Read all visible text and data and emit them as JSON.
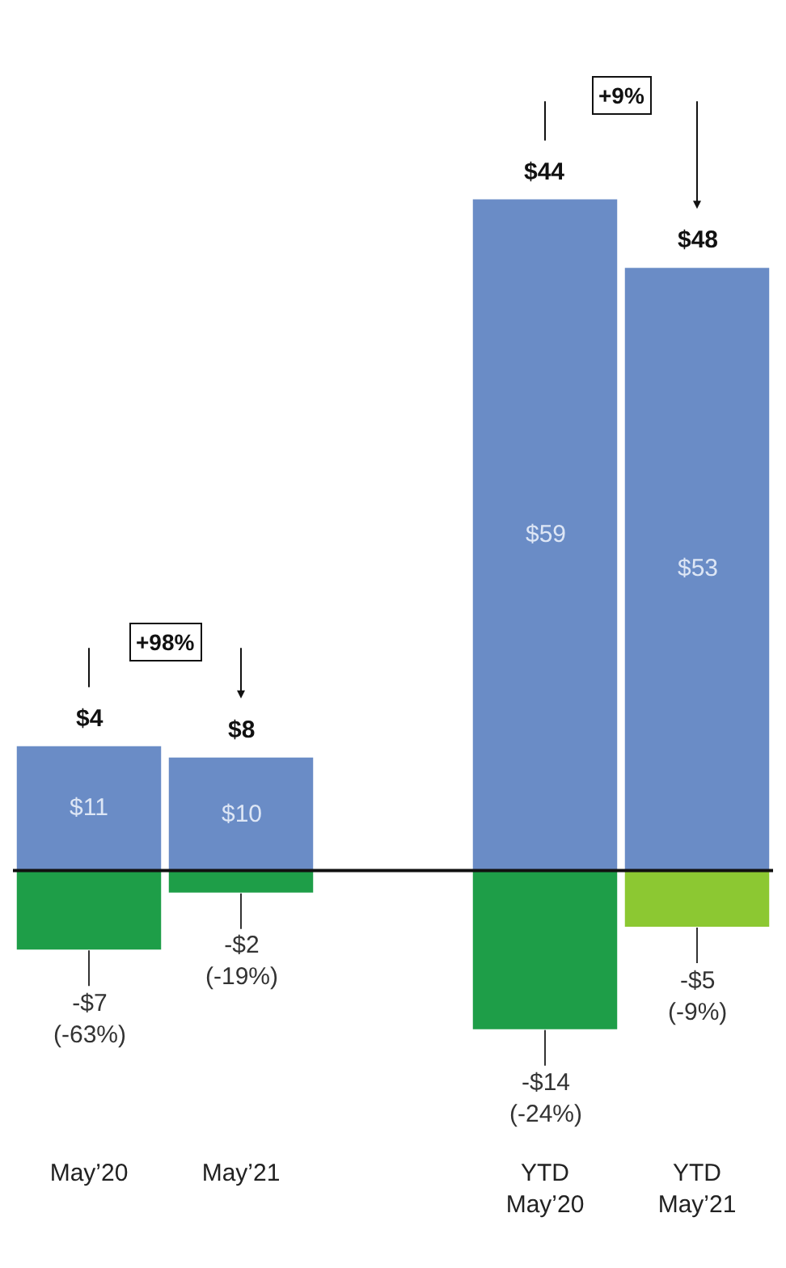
{
  "chart_data": {
    "type": "bar",
    "stacked": true,
    "categories": [
      "May’20",
      "May’21",
      null,
      "YTD\nMay’20",
      "YTD\nMay’21"
    ],
    "series": [
      {
        "color": "#6a8cc6",
        "values": [
          11,
          10,
          null,
          59,
          53
        ],
        "value_labels": [
          "$11",
          "$10",
          null,
          "$59",
          "$53"
        ]
      },
      {
        "color": "#1e9e48",
        "colors": [
          "#1e9e48",
          "#1e9e48",
          "#1e9e48",
          "#1e9e48",
          "#8cc832"
        ],
        "values": [
          -7,
          -2,
          null,
          -14,
          -5
        ],
        "value_labels": [
          "-$7\n(-63%)",
          "-$2\n(-19%)",
          null,
          "-$14\n(-24%)",
          "-$5\n(-9%)"
        ]
      }
    ],
    "totals": [
      "$4",
      "$8",
      null,
      "$44",
      "$48"
    ],
    "annotations": [
      "+98%",
      "+9%"
    ],
    "legend": false
  }
}
